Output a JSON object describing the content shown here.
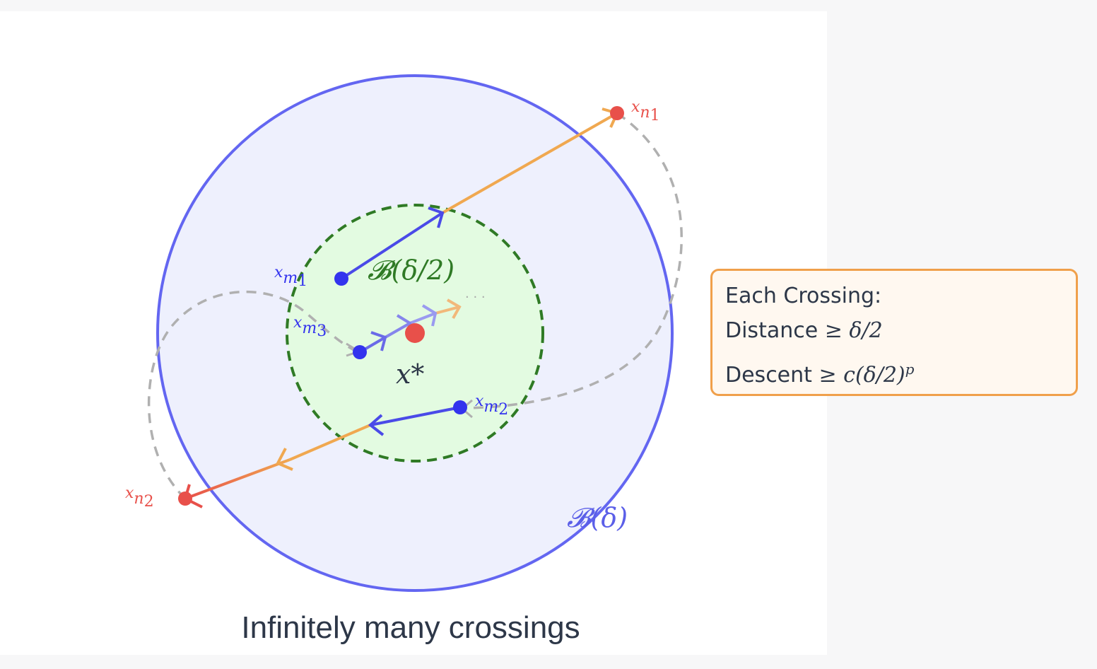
{
  "labels": {
    "x_m1_base": "x",
    "x_m1_sub": "m",
    "x_m1_subsub": "1",
    "x_m2_base": "x",
    "x_m2_sub": "m",
    "x_m2_subsub": "2",
    "x_m3_base": "x",
    "x_m3_sub": "m",
    "x_m3_subsub": "3",
    "x_n1_base": "x",
    "x_n1_sub": "n",
    "x_n1_subsub": "1",
    "x_n2_base": "x",
    "x_n2_sub": "n",
    "x_n2_subsub": "2",
    "x_star": "x*",
    "inner_ball": "𝓑(δ/2)",
    "outer_ball": "𝓑(δ)",
    "ellipsis": "· · ·"
  },
  "caption": "Infinitely many crossings",
  "callout": {
    "title": "Each Crossing:",
    "distance_label": "Distance",
    "distance_math": "≥ δ/2",
    "descent_label": "Descent",
    "descent_math": "≥ c(δ/2)",
    "descent_exp": "p"
  },
  "colors": {
    "outer_ball": "#6366f1",
    "outer_fill": "#eef0fd",
    "inner_ball": "#2f7a25",
    "inner_fill": "#e3fbe1",
    "blue_point": "#3333ee",
    "red_point": "#e8504a",
    "orange_path": "#f0a850",
    "dashed_path": "#b0b0b0",
    "text_dark": "#2d3748"
  }
}
